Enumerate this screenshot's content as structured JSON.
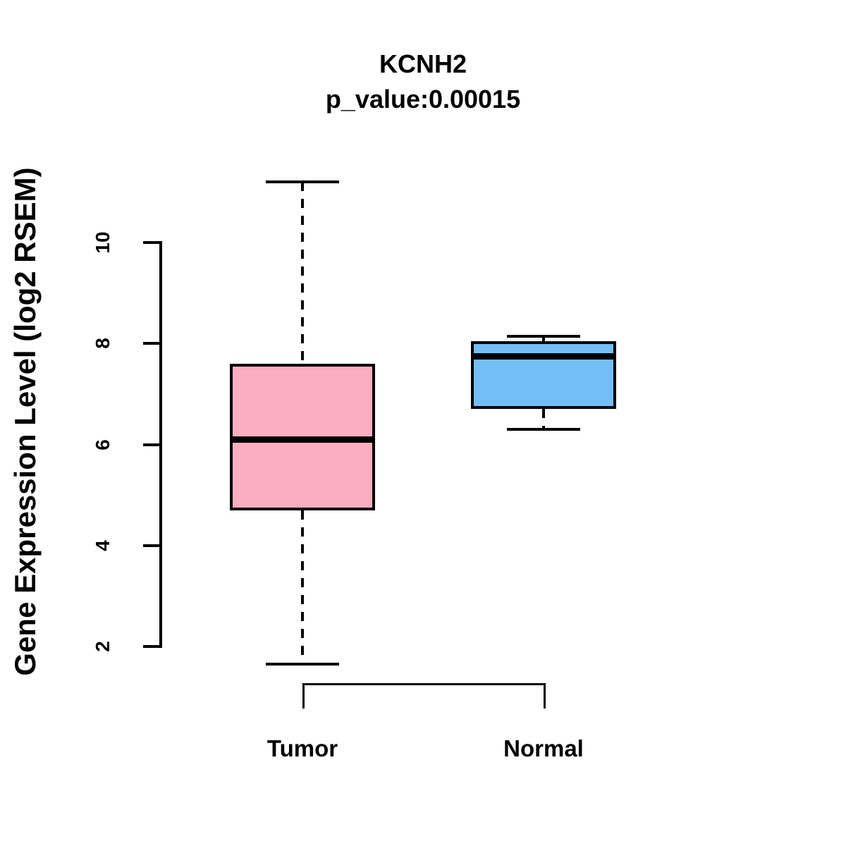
{
  "page": {
    "background": "#ffffff",
    "text_color": "#000000"
  },
  "chart_data": {
    "type": "boxplot",
    "title": "KCNH2",
    "subtitle": "p_value:0.00015",
    "ylabel": "Gene Expression Level (log2 RSEM)",
    "xlabel": "",
    "categories": [
      "Tumor",
      "Normal"
    ],
    "yticks": [
      2,
      4,
      6,
      8,
      10
    ],
    "ylim": [
      1.4,
      11.4
    ],
    "grid": false,
    "legend": false,
    "axis_color": "#000000",
    "median_color": "#000000",
    "series": [
      {
        "name": "Tumor",
        "fill_color": "#FCAEC1",
        "border_color": "#000000",
        "whisker_low": 1.65,
        "q1": 4.7,
        "median": 6.1,
        "q3": 7.6,
        "whisker_high": 11.2,
        "whisker_style": "dashed"
      },
      {
        "name": "Normal",
        "fill_color": "#74BEF7",
        "border_color": "#000000",
        "whisker_low": 6.3,
        "q1": 6.7,
        "median": 7.75,
        "q3": 8.05,
        "whisker_high": 8.15,
        "whisker_style": "dashed"
      }
    ]
  }
}
